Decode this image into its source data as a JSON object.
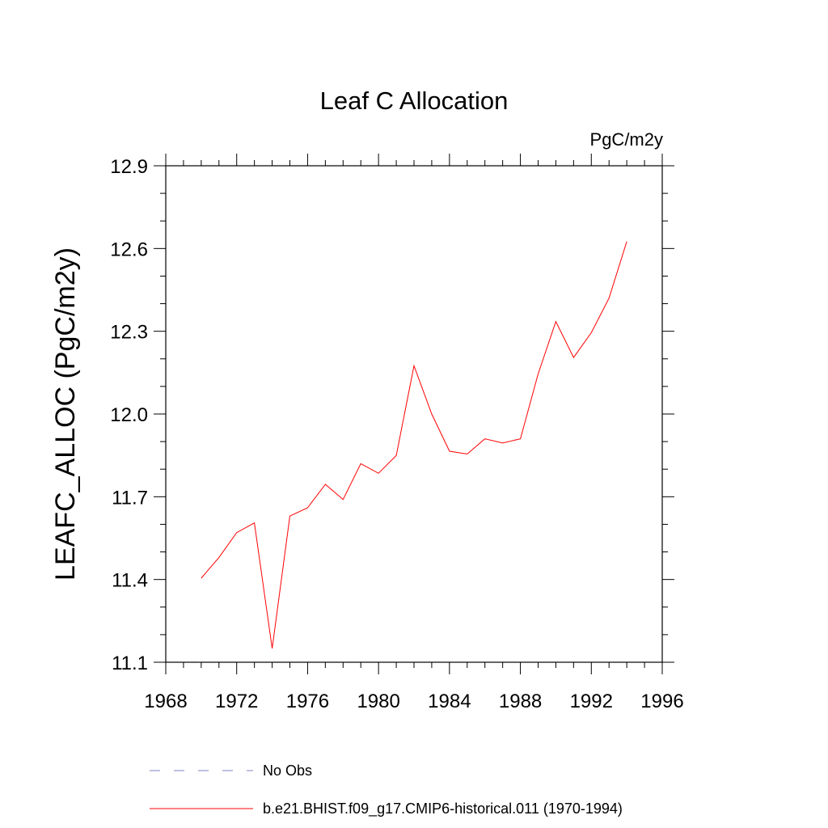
{
  "chart_data": {
    "type": "line",
    "title": "Leaf C Allocation",
    "units_label": "PgC/m2y",
    "xlabel": "",
    "ylabel": "LEAFC_ALLOC  (PgC/m2y)",
    "xlim": [
      1968,
      1996
    ],
    "ylim": [
      11.1,
      12.9
    ],
    "x_ticks": [
      1968,
      1972,
      1976,
      1980,
      1984,
      1988,
      1992,
      1996
    ],
    "y_ticks": [
      "11.1",
      "11.4",
      "11.7",
      "12.0",
      "12.3",
      "12.6",
      "12.9"
    ],
    "grid": false,
    "legend_position": "bottom",
    "series": [
      {
        "name": "b.e21.BHIST.f09_g17.CMIP6-historical.011 (1970-1994)",
        "color": "#ff0000",
        "x": [
          1970,
          1971,
          1972,
          1973,
          1974,
          1975,
          1976,
          1977,
          1978,
          1979,
          1980,
          1981,
          1982,
          1983,
          1984,
          1985,
          1986,
          1987,
          1988,
          1989,
          1990,
          1991,
          1992,
          1993,
          1994
        ],
        "y": [
          11.405,
          11.48,
          11.57,
          11.605,
          11.15,
          11.63,
          11.66,
          11.745,
          11.69,
          11.82,
          11.785,
          11.85,
          12.175,
          12.0,
          11.865,
          11.855,
          11.91,
          11.895,
          11.91,
          12.145,
          12.335,
          12.205,
          12.295,
          12.42,
          12.625
        ]
      }
    ],
    "legend": [
      {
        "label": "No Obs",
        "color": "#8080c0",
        "style": "dashed"
      },
      {
        "label": "b.e21.BHIST.f09_g17.CMIP6-historical.011 (1970-1994)",
        "color": "#ff0000",
        "style": "solid"
      }
    ]
  }
}
